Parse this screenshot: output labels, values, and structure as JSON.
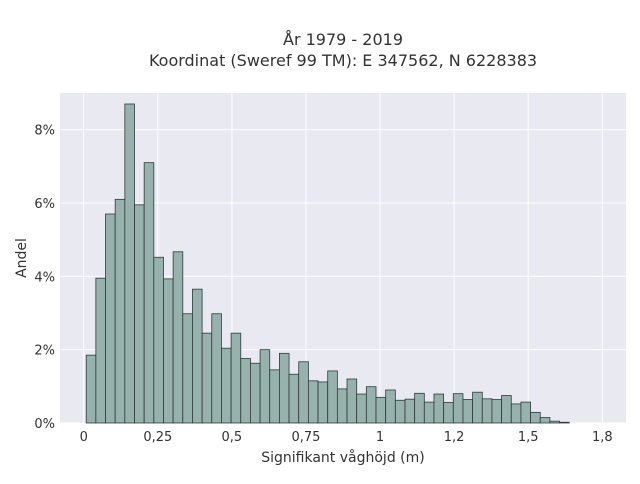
{
  "chart_data": {
    "type": "bar",
    "title_line1": "År 1979 - 2019",
    "title_line2": "Koordinat (Sweref 99 TM): E 347562, N 6228383",
    "xlabel": "Signifikant våghöjd (m)",
    "ylabel": "Andel",
    "x_ticks": [
      {
        "value": 0,
        "label": "0"
      },
      {
        "value": 0.25,
        "label": "0,25"
      },
      {
        "value": 0.5,
        "label": "0,5"
      },
      {
        "value": 0.75,
        "label": "0,75"
      },
      {
        "value": 1,
        "label": "1"
      },
      {
        "value": 1.25,
        "label": "1,2"
      },
      {
        "value": 1.5,
        "label": "1,5"
      },
      {
        "value": 1.75,
        "label": "1,8"
      }
    ],
    "y_ticks": [
      {
        "value": 0,
        "label": "0%"
      },
      {
        "value": 2,
        "label": "2%"
      },
      {
        "value": 4,
        "label": "4%"
      },
      {
        "value": 6,
        "label": "6%"
      },
      {
        "value": 8,
        "label": "8%"
      }
    ],
    "xlim": [
      -0.08,
      1.83
    ],
    "ylim": [
      0,
      9.0
    ],
    "bin_start": 0.0084,
    "bin_width": 0.0326,
    "values": [
      1.85,
      3.95,
      5.7,
      6.1,
      8.7,
      5.95,
      7.1,
      4.52,
      3.93,
      4.67,
      2.98,
      3.65,
      2.45,
      2.98,
      2.04,
      2.45,
      1.76,
      1.63,
      2.0,
      1.45,
      1.9,
      1.33,
      1.67,
      1.15,
      1.12,
      1.42,
      0.93,
      1.2,
      0.79,
      0.99,
      0.7,
      0.9,
      0.62,
      0.65,
      0.81,
      0.57,
      0.79,
      0.56,
      0.8,
      0.64,
      0.84,
      0.66,
      0.64,
      0.75,
      0.52,
      0.57,
      0.29,
      0.15,
      0.05,
      0.02
    ],
    "colors": {
      "bar_fill": "#97b1ad",
      "bar_stroke": "#2d3b39",
      "plot_bg": "#e9e9f2",
      "grid": "#ffffff"
    }
  }
}
